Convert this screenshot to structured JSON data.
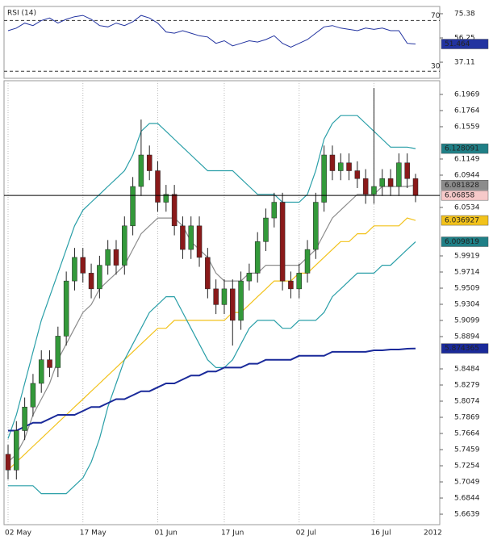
{
  "chart_data": [
    {
      "type": "line",
      "title": "RSI (14)",
      "ylim": [
        24.4,
        81.1
      ],
      "yticks": [
        75.38,
        56.25,
        37.11
      ],
      "levels": [
        70,
        30
      ],
      "series": [
        {
          "color": "#2233a0",
          "values": [
            62,
            64,
            68,
            66,
            70,
            72,
            68,
            71,
            73,
            74,
            71,
            66,
            65,
            68,
            66,
            69,
            74,
            72,
            68,
            61,
            60,
            62,
            60,
            58,
            57,
            52,
            54,
            50,
            52,
            54,
            53,
            55,
            58,
            52,
            49,
            52,
            55,
            60,
            65,
            66,
            64,
            63,
            62,
            64,
            63,
            64,
            62,
            62,
            52,
            51.464
          ]
        }
      ]
    },
    {
      "type": "candlestick",
      "categories": [
        "02 May",
        null,
        null,
        null,
        null,
        null,
        null,
        null,
        null,
        "17 May",
        null,
        null,
        null,
        null,
        null,
        null,
        null,
        null,
        "01 Jun",
        null,
        null,
        null,
        null,
        null,
        null,
        null,
        "17 Jun",
        null,
        null,
        null,
        null,
        null,
        null,
        null,
        null,
        "02 Jul",
        null,
        null,
        null,
        null,
        null,
        null,
        null,
        null,
        "16 Jul",
        null,
        null,
        null,
        null,
        null
      ],
      "x_year_label": "2012",
      "ylim": [
        5.6506,
        6.2143
      ],
      "yticks": [
        6.1969,
        6.1764,
        6.1559,
        6.1149,
        6.0944,
        6.0534,
        5.9919,
        5.9714,
        5.9509,
        5.9304,
        5.9099,
        5.8894,
        5.8484,
        5.8279,
        5.8074,
        5.7869,
        5.7664,
        5.7459,
        5.7254,
        5.7049,
        5.6844,
        5.6639
      ],
      "grid": true,
      "up_color": "#33993a",
      "down_color": "#8a1a1a",
      "open": [
        5.74,
        5.72,
        5.77,
        5.8,
        5.83,
        5.86,
        5.85,
        5.89,
        5.96,
        5.99,
        5.97,
        5.95,
        5.98,
        6.0,
        5.98,
        6.03,
        6.08,
        6.12,
        6.1,
        6.06,
        6.07,
        6.03,
        6.0,
        6.03,
        5.99,
        5.95,
        5.93,
        5.95,
        5.91,
        5.96,
        5.97,
        6.01,
        6.04,
        6.06,
        5.96,
        5.95,
        5.97,
        6.0,
        6.06,
        6.12,
        6.1,
        6.11,
        6.1,
        6.09,
        6.07,
        6.08,
        6.09,
        6.08,
        6.11,
        6.09
      ],
      "high": [
        5.752,
        5.782,
        5.812,
        5.842,
        5.872,
        5.872,
        5.902,
        5.972,
        6.002,
        6.002,
        5.982,
        5.992,
        6.012,
        6.012,
        6.042,
        6.092,
        6.165,
        6.132,
        6.112,
        6.082,
        6.082,
        6.042,
        6.042,
        6.042,
        6.002,
        5.962,
        5.962,
        5.962,
        5.972,
        5.982,
        6.022,
        6.052,
        6.072,
        6.072,
        5.972,
        5.982,
        6.012,
        6.072,
        6.132,
        6.132,
        6.122,
        6.122,
        6.112,
        6.102,
        6.205,
        6.102,
        6.102,
        6.122,
        6.122,
        6.096
      ],
      "low": [
        5.708,
        5.708,
        5.758,
        5.788,
        5.818,
        5.838,
        5.838,
        5.878,
        5.948,
        5.958,
        5.938,
        5.938,
        5.968,
        5.968,
        5.968,
        6.018,
        6.068,
        6.088,
        6.048,
        6.048,
        6.018,
        5.988,
        5.988,
        5.978,
        5.938,
        5.918,
        5.918,
        5.878,
        5.898,
        5.948,
        5.958,
        5.998,
        6.028,
        5.948,
        5.938,
        5.938,
        5.958,
        5.988,
        6.048,
        6.088,
        6.088,
        6.088,
        6.078,
        6.058,
        6.058,
        6.068,
        6.068,
        6.068,
        6.078,
        6.06
      ],
      "close": [
        5.72,
        5.77,
        5.8,
        5.83,
        5.86,
        5.85,
        5.89,
        5.96,
        5.99,
        5.97,
        5.95,
        5.98,
        6.0,
        5.98,
        6.03,
        6.08,
        6.12,
        6.1,
        6.06,
        6.07,
        6.03,
        6.0,
        6.03,
        5.99,
        5.95,
        5.93,
        5.95,
        5.91,
        5.96,
        5.97,
        6.01,
        6.04,
        6.06,
        5.96,
        5.95,
        5.97,
        6.0,
        6.06,
        6.12,
        6.1,
        6.11,
        6.1,
        6.09,
        6.07,
        6.08,
        6.09,
        6.08,
        6.11,
        6.09,
        6.06858
      ],
      "close_color": "#f6c9c9",
      "series": [
        {
          "color": "#2a9fa8",
          "label_bg": "#1f7f86",
          "values": [
            5.76,
            5.79,
            5.83,
            5.87,
            5.91,
            5.94,
            5.97,
            6.0,
            6.03,
            6.05,
            6.06,
            6.07,
            6.08,
            6.09,
            6.1,
            6.12,
            6.15,
            6.16,
            6.16,
            6.15,
            6.14,
            6.13,
            6.12,
            6.11,
            6.1,
            6.1,
            6.1,
            6.1,
            6.09,
            6.08,
            6.07,
            6.07,
            6.07,
            6.06,
            6.06,
            6.06,
            6.07,
            6.1,
            6.14,
            6.16,
            6.17,
            6.17,
            6.17,
            6.16,
            6.15,
            6.14,
            6.13,
            6.13,
            6.13,
            6.128091
          ]
        },
        {
          "color": "#8c8c8c",
          "label_bg": "#8c8c8c",
          "values": [
            5.73,
            5.74,
            5.76,
            5.79,
            5.81,
            5.83,
            5.86,
            5.88,
            5.9,
            5.92,
            5.93,
            5.95,
            5.96,
            5.97,
            5.98,
            6.0,
            6.02,
            6.03,
            6.04,
            6.04,
            6.04,
            6.03,
            6.01,
            6.0,
            5.99,
            5.97,
            5.96,
            5.96,
            5.96,
            5.97,
            5.97,
            5.98,
            5.98,
            5.98,
            5.98,
            5.98,
            5.99,
            6.0,
            6.02,
            6.04,
            6.05,
            6.06,
            6.07,
            6.07,
            6.07,
            6.08,
            6.08,
            6.08,
            6.08,
            6.081828
          ]
        },
        {
          "color": "#f2c21b",
          "label_bg": "#f2c21b",
          "values": [
            5.72,
            5.73,
            5.74,
            5.75,
            5.76,
            5.77,
            5.78,
            5.79,
            5.8,
            5.81,
            5.82,
            5.83,
            5.84,
            5.85,
            5.86,
            5.87,
            5.88,
            5.89,
            5.9,
            5.9,
            5.91,
            5.91,
            5.91,
            5.91,
            5.91,
            5.91,
            5.91,
            5.92,
            5.92,
            5.93,
            5.94,
            5.95,
            5.96,
            5.96,
            5.96,
            5.97,
            5.97,
            5.98,
            5.99,
            6.0,
            6.01,
            6.01,
            6.02,
            6.02,
            6.03,
            6.03,
            6.03,
            6.03,
            6.04,
            6.036927
          ]
        },
        {
          "color": "#2a9fa8",
          "label_bg": "#1f7f86",
          "values": [
            5.7,
            5.7,
            5.7,
            5.7,
            5.69,
            5.69,
            5.69,
            5.69,
            5.7,
            5.71,
            5.73,
            5.76,
            5.8,
            5.83,
            5.86,
            5.88,
            5.9,
            5.92,
            5.93,
            5.94,
            5.94,
            5.92,
            5.9,
            5.88,
            5.86,
            5.85,
            5.85,
            5.86,
            5.88,
            5.9,
            5.91,
            5.91,
            5.91,
            5.9,
            5.9,
            5.91,
            5.91,
            5.91,
            5.92,
            5.94,
            5.95,
            5.96,
            5.97,
            5.97,
            5.97,
            5.98,
            5.98,
            5.99,
            6.0,
            6.009819
          ]
        },
        {
          "color": "#1a2a9a",
          "label_bg": "#1a2a9a",
          "values": [
            5.77,
            5.77,
            5.775,
            5.78,
            5.78,
            5.785,
            5.79,
            5.79,
            5.79,
            5.795,
            5.8,
            5.8,
            5.805,
            5.81,
            5.81,
            5.815,
            5.82,
            5.82,
            5.825,
            5.83,
            5.83,
            5.835,
            5.84,
            5.84,
            5.845,
            5.845,
            5.85,
            5.85,
            5.85,
            5.855,
            5.855,
            5.86,
            5.86,
            5.86,
            5.86,
            5.865,
            5.865,
            5.865,
            5.865,
            5.87,
            5.87,
            5.87,
            5.87,
            5.87,
            5.872,
            5.872,
            5.873,
            5.873,
            5.874,
            5.874365
          ]
        }
      ]
    }
  ]
}
